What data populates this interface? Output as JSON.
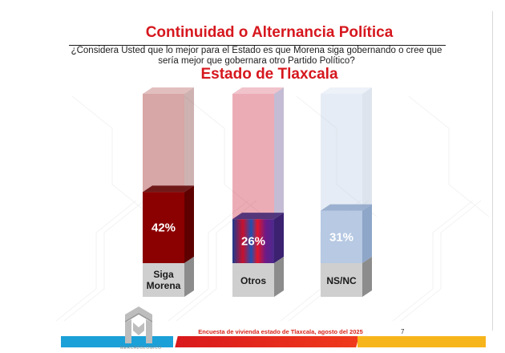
{
  "slide": {
    "title": "Continuidad o Alternancia Política",
    "question": "¿Considera Usted que lo mejor para el Estado es que Morena siga gobernando o cree que sería mejor que gobernara otro Partido Político?",
    "subtitle": "Estado de Tlaxcala",
    "footer_note": "Encuesta de vivienda estado de Tlaxcala, agosto del 2025",
    "page_number": "7",
    "logo_text": "MERCADOLOGICO"
  },
  "chart_data": {
    "type": "bar",
    "title": "Estado de Tlaxcala",
    "categories": [
      "Siga Morena",
      "Otros",
      "NS/NC"
    ],
    "values": [
      42,
      26,
      31
    ],
    "value_labels": [
      "42%",
      "26%",
      "31%"
    ],
    "ylim": [
      0,
      100
    ],
    "grid": false,
    "legend": "none",
    "colors": {
      "siga_morena": "#8b0000",
      "otros": "#c8102e",
      "ns_nc": "#b7c9e3"
    }
  }
}
